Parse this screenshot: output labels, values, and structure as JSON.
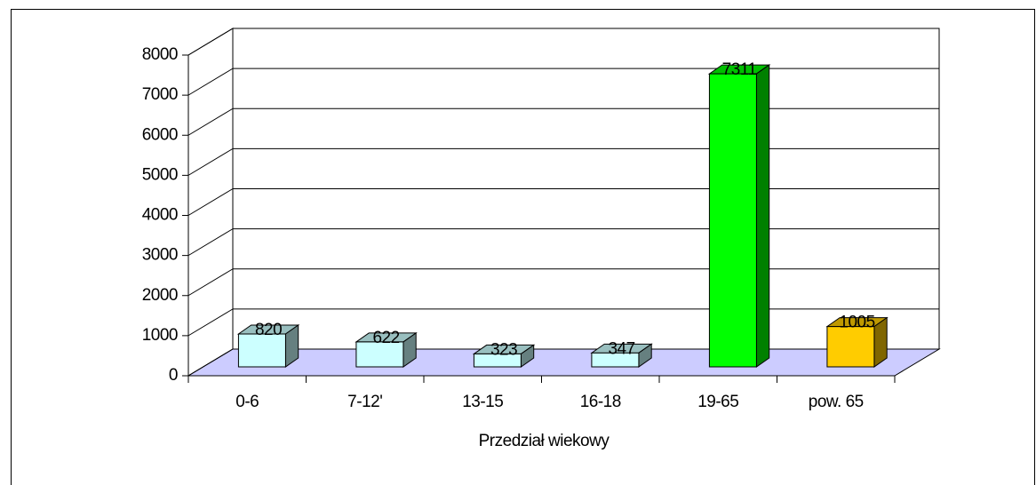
{
  "chart_data": {
    "type": "bar3d",
    "categories": [
      "0-6",
      "7-12'",
      "13-15",
      "16-18",
      "19-65",
      "pow. 65"
    ],
    "values": [
      820,
      622,
      323,
      347,
      7311,
      1005
    ],
    "colors": [
      "#ccffff",
      "#ccffff",
      "#ccffff",
      "#ccffff",
      "#00ff00",
      "#ffcc00"
    ],
    "x_label": "Przedział wiekowy",
    "ylim": [
      0,
      8000
    ],
    "yticks": [
      0,
      1000,
      2000,
      3000,
      4000,
      5000,
      6000,
      7000,
      8000
    ],
    "grid": true
  }
}
